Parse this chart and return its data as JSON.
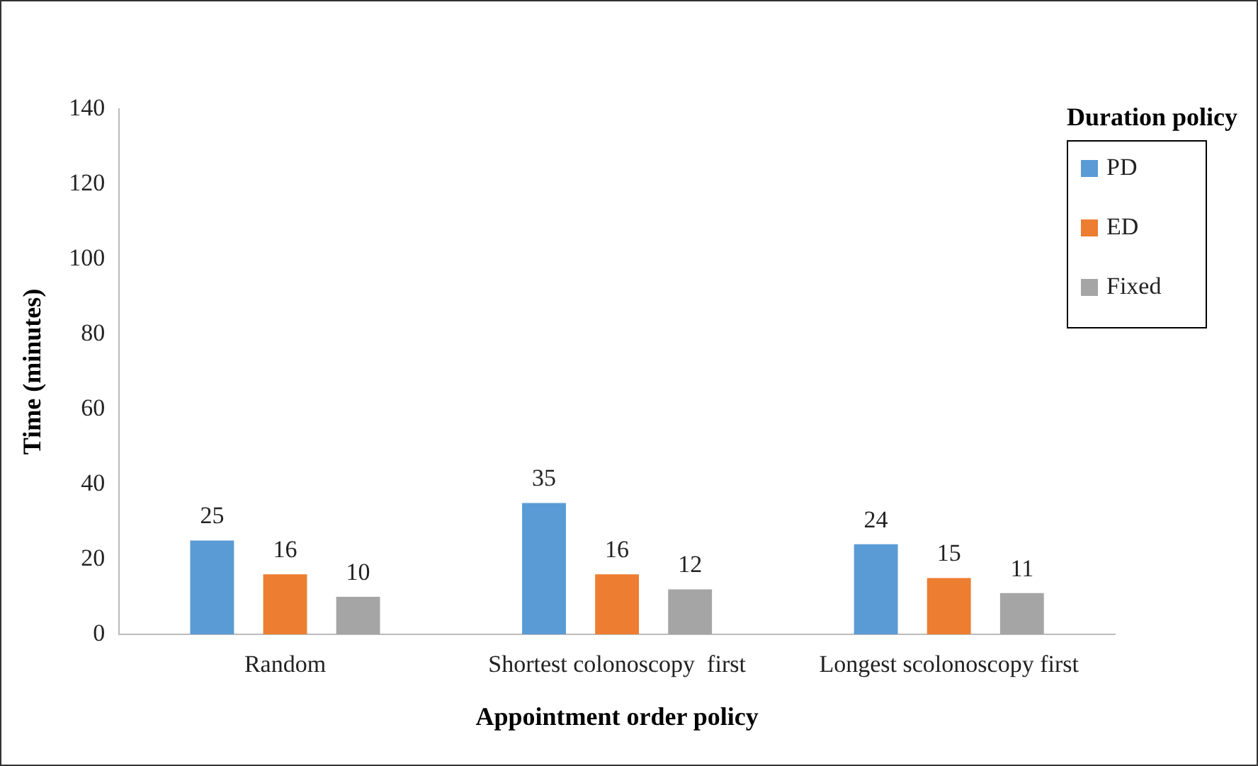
{
  "chart_data": {
    "type": "bar",
    "xlabel": "Appointment order policy",
    "ylabel": "Time (minutes)",
    "legend_title": "Duration policy",
    "categories": [
      "Random",
      "Shortest colonoscopy  first",
      "Longest scolonoscopy first"
    ],
    "series": [
      {
        "name": "PD",
        "color": "#5b9bd5",
        "values": [
          25,
          35,
          24
        ]
      },
      {
        "name": "ED",
        "color": "#ed7d31",
        "values": [
          16,
          16,
          15
        ]
      },
      {
        "name": "Fixed",
        "color": "#a5a5a5",
        "values": [
          10,
          12,
          11
        ]
      }
    ],
    "ylim": [
      0,
      140
    ],
    "yticks": [
      0,
      20,
      40,
      60,
      80,
      100,
      120,
      140
    ],
    "grid": false,
    "legend": "top right",
    "data_labels": true
  }
}
